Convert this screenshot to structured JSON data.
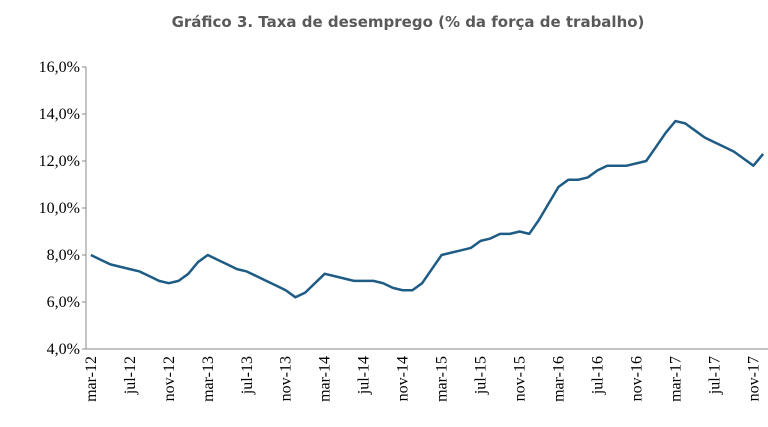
{
  "chart_data": {
    "type": "line",
    "title": "Gráfico 3. Taxa de desemprego (% da força de trabalho)",
    "categories": [
      "mar-12",
      null,
      null,
      null,
      "jul-12",
      null,
      null,
      null,
      "nov-12",
      null,
      null,
      null,
      "mar-13",
      null,
      null,
      null,
      "jul-13",
      null,
      null,
      null,
      "nov-13",
      null,
      null,
      null,
      "mar-14",
      null,
      null,
      null,
      "jul-14",
      null,
      null,
      null,
      "nov-14",
      null,
      null,
      null,
      "mar-15",
      null,
      null,
      null,
      "jul-15",
      null,
      null,
      null,
      "nov-15",
      null,
      null,
      null,
      "mar-16",
      null,
      null,
      null,
      "jul-16",
      null,
      null,
      null,
      "nov-16",
      null,
      null,
      null,
      "mar-17",
      null,
      null,
      null,
      "jul-17",
      null,
      null,
      null,
      "nov-17",
      null
    ],
    "values": [
      8.0,
      7.8,
      7.6,
      7.5,
      7.4,
      7.3,
      7.1,
      6.9,
      6.8,
      6.9,
      7.2,
      7.7,
      8.0,
      7.8,
      7.6,
      7.4,
      7.3,
      7.1,
      6.9,
      6.7,
      6.5,
      6.2,
      6.4,
      6.8,
      7.2,
      7.1,
      7.0,
      6.9,
      6.9,
      6.9,
      6.8,
      6.6,
      6.5,
      6.5,
      6.8,
      7.4,
      8.0,
      8.1,
      8.2,
      8.3,
      8.6,
      8.7,
      8.9,
      8.9,
      9.0,
      8.9,
      9.5,
      10.2,
      10.9,
      11.2,
      11.2,
      11.3,
      11.6,
      11.8,
      11.8,
      11.8,
      11.9,
      12.0,
      12.6,
      13.2,
      13.7,
      13.6,
      13.3,
      13.0,
      12.8,
      12.6,
      12.4,
      12.1,
      11.8,
      12.3
    ],
    "color": "#1f5c85",
    "ylim": [
      4,
      16
    ],
    "yticks": [
      {
        "value": 4,
        "label": "4,0%"
      },
      {
        "value": 6,
        "label": "6,0%"
      },
      {
        "value": 8,
        "label": "8,0%"
      },
      {
        "value": 10,
        "label": "10,0%"
      },
      {
        "value": 12,
        "label": "12,0%"
      },
      {
        "value": 14,
        "label": "14,0%"
      },
      {
        "value": 16,
        "label": "16,0%"
      }
    ],
    "grid": false
  }
}
